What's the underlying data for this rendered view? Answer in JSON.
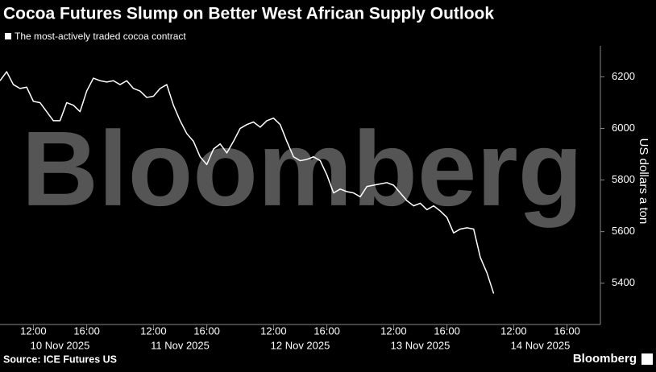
{
  "chart_data": {
    "type": "line",
    "title": "Cocoa Futures Slump on Better West African Supply Outlook",
    "watermark": "Bloomberg",
    "y_label": "US dollars a ton",
    "source": "Source: ICE Futures US",
    "brand": "Bloomberg",
    "categories": [
      null,
      null,
      null,
      null,
      null,
      "12:00",
      null,
      null,
      null,
      null,
      null,
      null,
      null,
      "16:00",
      null,
      null,
      null,
      null,
      null,
      null,
      null,
      null,
      null,
      "12:00",
      null,
      null,
      null,
      null,
      null,
      null,
      null,
      "16:00",
      null,
      null,
      null,
      null,
      null,
      null,
      null,
      null,
      null,
      "12:00",
      null,
      null,
      null,
      null,
      null,
      null,
      null,
      "16:00",
      null,
      null,
      null,
      null,
      null,
      null,
      null,
      null,
      null,
      "12:00",
      null,
      null,
      null,
      null,
      null,
      null,
      null,
      "16:00",
      null,
      null,
      null,
      null,
      null,
      null,
      null,
      null,
      null,
      "12:00",
      null,
      null,
      null,
      null,
      null,
      null,
      null,
      "16:00",
      null,
      null,
      null,
      null
    ],
    "date_labels": [
      null,
      null,
      null,
      null,
      null,
      null,
      null,
      null,
      null,
      "10 Nov 2025",
      null,
      null,
      null,
      null,
      null,
      null,
      null,
      null,
      null,
      null,
      null,
      null,
      null,
      null,
      null,
      null,
      null,
      "11 Nov 2025",
      null,
      null,
      null,
      null,
      null,
      null,
      null,
      null,
      null,
      null,
      null,
      null,
      null,
      null,
      null,
      null,
      null,
      "12 Nov 2025",
      null,
      null,
      null,
      null,
      null,
      null,
      null,
      null,
      null,
      null,
      null,
      null,
      null,
      null,
      null,
      null,
      null,
      "13 Nov 2025",
      null,
      null,
      null,
      null,
      null,
      null,
      null,
      null,
      null,
      null,
      null,
      null,
      null,
      null,
      null,
      null,
      null,
      "14 Nov 2025",
      null,
      null,
      null,
      null,
      null,
      null,
      null,
      null
    ],
    "series": [
      {
        "name": "The most-actively traded cocoa contract",
        "color": "#ffffff",
        "values": [
          6185,
          6220,
          6170,
          6155,
          6160,
          6105,
          6100,
          6065,
          6030,
          6030,
          6100,
          6090,
          6065,
          6145,
          6195,
          6185,
          6180,
          6185,
          6170,
          6185,
          6155,
          6145,
          6120,
          6125,
          6155,
          6170,
          6090,
          6030,
          5980,
          5950,
          5890,
          5860,
          5920,
          5940,
          5905,
          5950,
          6000,
          6015,
          6025,
          6005,
          6030,
          6040,
          6015,
          5950,
          5890,
          5875,
          5880,
          5890,
          5875,
          5820,
          5750,
          5765,
          5755,
          5750,
          5735,
          5775,
          5780,
          5785,
          5790,
          5780,
          5750,
          5720,
          5700,
          5710,
          5685,
          5700,
          5680,
          5655,
          5595,
          5610,
          5615,
          5610,
          5500,
          5440,
          5360,
          null,
          null,
          null,
          null,
          null,
          null,
          null,
          null,
          null,
          null,
          null,
          null,
          null,
          null,
          null
        ]
      }
    ],
    "ylim": [
      5240,
      6320
    ],
    "yticks": [
      5400,
      5600,
      5800,
      6000,
      6200
    ],
    "grid": false
  }
}
